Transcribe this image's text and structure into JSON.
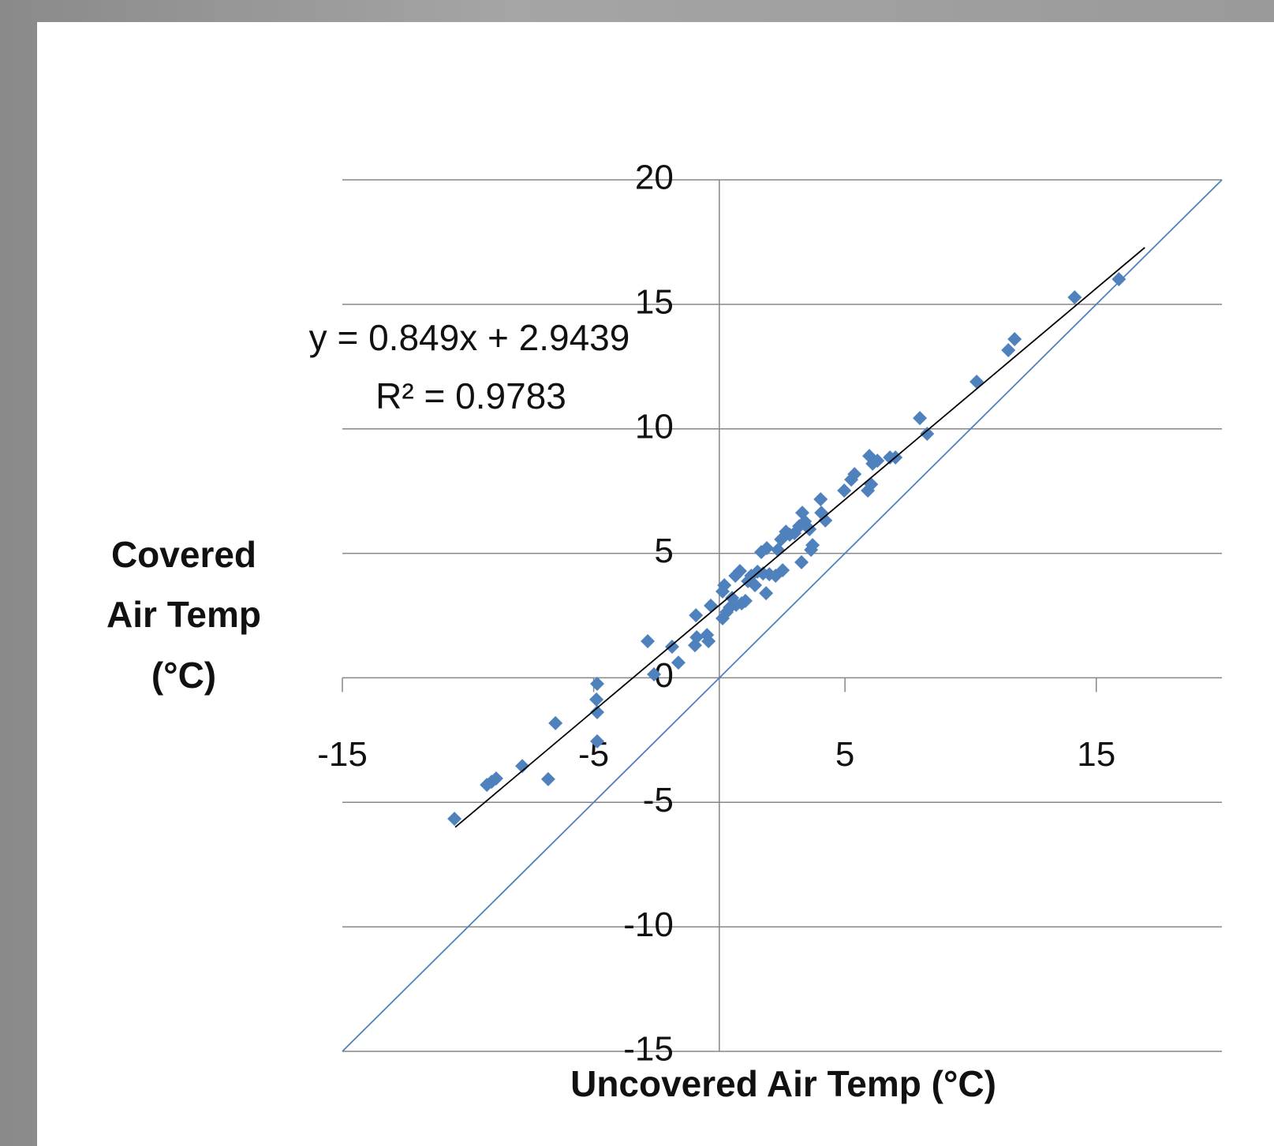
{
  "chart_data": {
    "type": "scatter",
    "xlabel": "Uncovered Air Temp (°C)",
    "ylabel": [
      "Covered",
      "Air Temp",
      "(°C)"
    ],
    "annotations": [
      "y = 0.849x + 2.9439",
      "R² = 0.9783"
    ],
    "xlim": [
      -15,
      20
    ],
    "ylim": [
      -15,
      20
    ],
    "xticks": [
      -15,
      -5,
      5,
      15
    ],
    "yticks": [
      -15,
      -10,
      -5,
      0,
      5,
      10,
      15,
      20
    ],
    "grid": true,
    "series": [
      {
        "type": "scatter",
        "color": "#4f81bd",
        "x": [
          -10.54,
          -9.25,
          -9.06,
          -8.88,
          -7.84,
          -6.81,
          -6.52,
          -4.86,
          -4.89,
          -4.86,
          -4.86,
          -2.85,
          -2.6,
          -1.88,
          -1.63,
          -0.93,
          -0.97,
          -0.9,
          -0.49,
          -0.43,
          -0.34,
          0.13,
          0.13,
          0.2,
          0.29,
          0.42,
          0.51,
          0.64,
          0.67,
          0.82,
          0.89,
          1.04,
          1.14,
          1.27,
          1.42,
          1.52,
          1.67,
          1.74,
          1.86,
          1.89,
          1.99,
          2.24,
          2.33,
          2.52,
          2.46,
          2.65,
          2.8,
          2.99,
          3.18,
          3.27,
          3.3,
          3.4,
          3.59,
          3.65,
          3.71,
          4.03,
          4.06,
          4.22,
          4.97,
          5.25,
          5.38,
          5.91,
          6.04,
          5.97,
          6.1,
          6.29,
          6.79,
          7.01,
          7.98,
          8.27,
          10.24,
          11.5,
          11.75,
          14.14,
          15.9
        ],
        "values": [
          -5.66,
          -4.3,
          -4.17,
          -4.04,
          -3.54,
          -4.07,
          -1.82,
          -0.24,
          -0.87,
          -1.38,
          -2.55,
          1.47,
          0.14,
          1.25,
          0.61,
          2.51,
          1.31,
          1.63,
          1.72,
          1.47,
          2.9,
          2.39,
          3.47,
          3.72,
          2.64,
          2.83,
          3.21,
          4.1,
          2.93,
          4.29,
          2.99,
          3.09,
          3.88,
          4.1,
          3.72,
          4.26,
          5.05,
          4.19,
          3.4,
          5.21,
          4.16,
          4.1,
          5.14,
          4.32,
          5.56,
          5.87,
          5.75,
          5.81,
          6.09,
          4.64,
          6.63,
          6.28,
          5.97,
          5.14,
          5.33,
          7.17,
          6.63,
          6.32,
          7.52,
          7.96,
          8.18,
          7.52,
          7.77,
          8.91,
          8.6,
          8.72,
          8.85,
          8.85,
          10.43,
          9.8,
          11.89,
          13.16,
          13.6,
          15.28,
          16.01
        ]
      },
      {
        "type": "line",
        "color": "#000000",
        "x": [
          -10.51,
          16.93
        ],
        "values": [
          -6.0,
          17.28
        ]
      },
      {
        "type": "line",
        "color": "#4f81bd",
        "x": [
          -15,
          20
        ],
        "values": [
          -15,
          20
        ]
      }
    ]
  }
}
